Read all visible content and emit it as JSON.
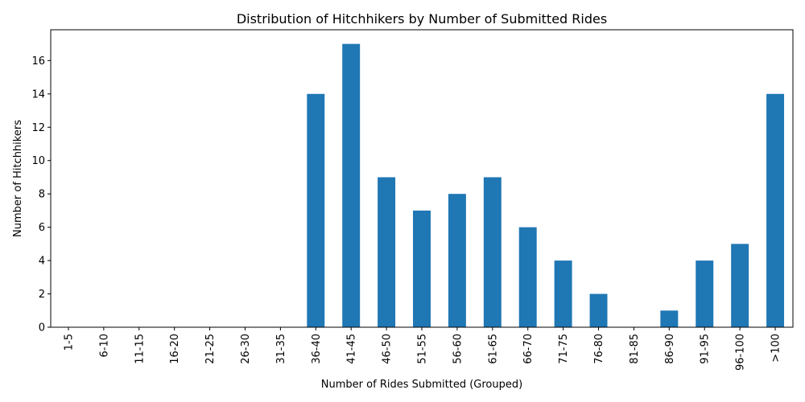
{
  "chart_data": {
    "type": "bar",
    "title": "Distribution of Hitchhikers by Number of Submitted Rides",
    "xlabel": "Number of Rides Submitted (Grouped)",
    "ylabel": "Number of Hitchhikers",
    "categories": [
      "1-5",
      "6-10",
      "11-15",
      "16-20",
      "21-25",
      "26-30",
      "31-35",
      "36-40",
      "41-45",
      "46-50",
      "51-55",
      "56-60",
      "61-65",
      "66-70",
      "71-75",
      "76-80",
      "81-85",
      "86-90",
      "91-95",
      "96-100",
      ">100"
    ],
    "values": [
      0,
      0,
      0,
      0,
      0,
      0,
      0,
      14,
      17,
      9,
      7,
      8,
      9,
      6,
      4,
      2,
      0,
      1,
      4,
      5,
      14
    ],
    "ylim": [
      0,
      17.85
    ],
    "yticks": [
      0,
      2,
      4,
      6,
      8,
      10,
      12,
      14,
      16
    ],
    "grid": false,
    "legend": "none",
    "bar_color": "#1f77b4"
  }
}
